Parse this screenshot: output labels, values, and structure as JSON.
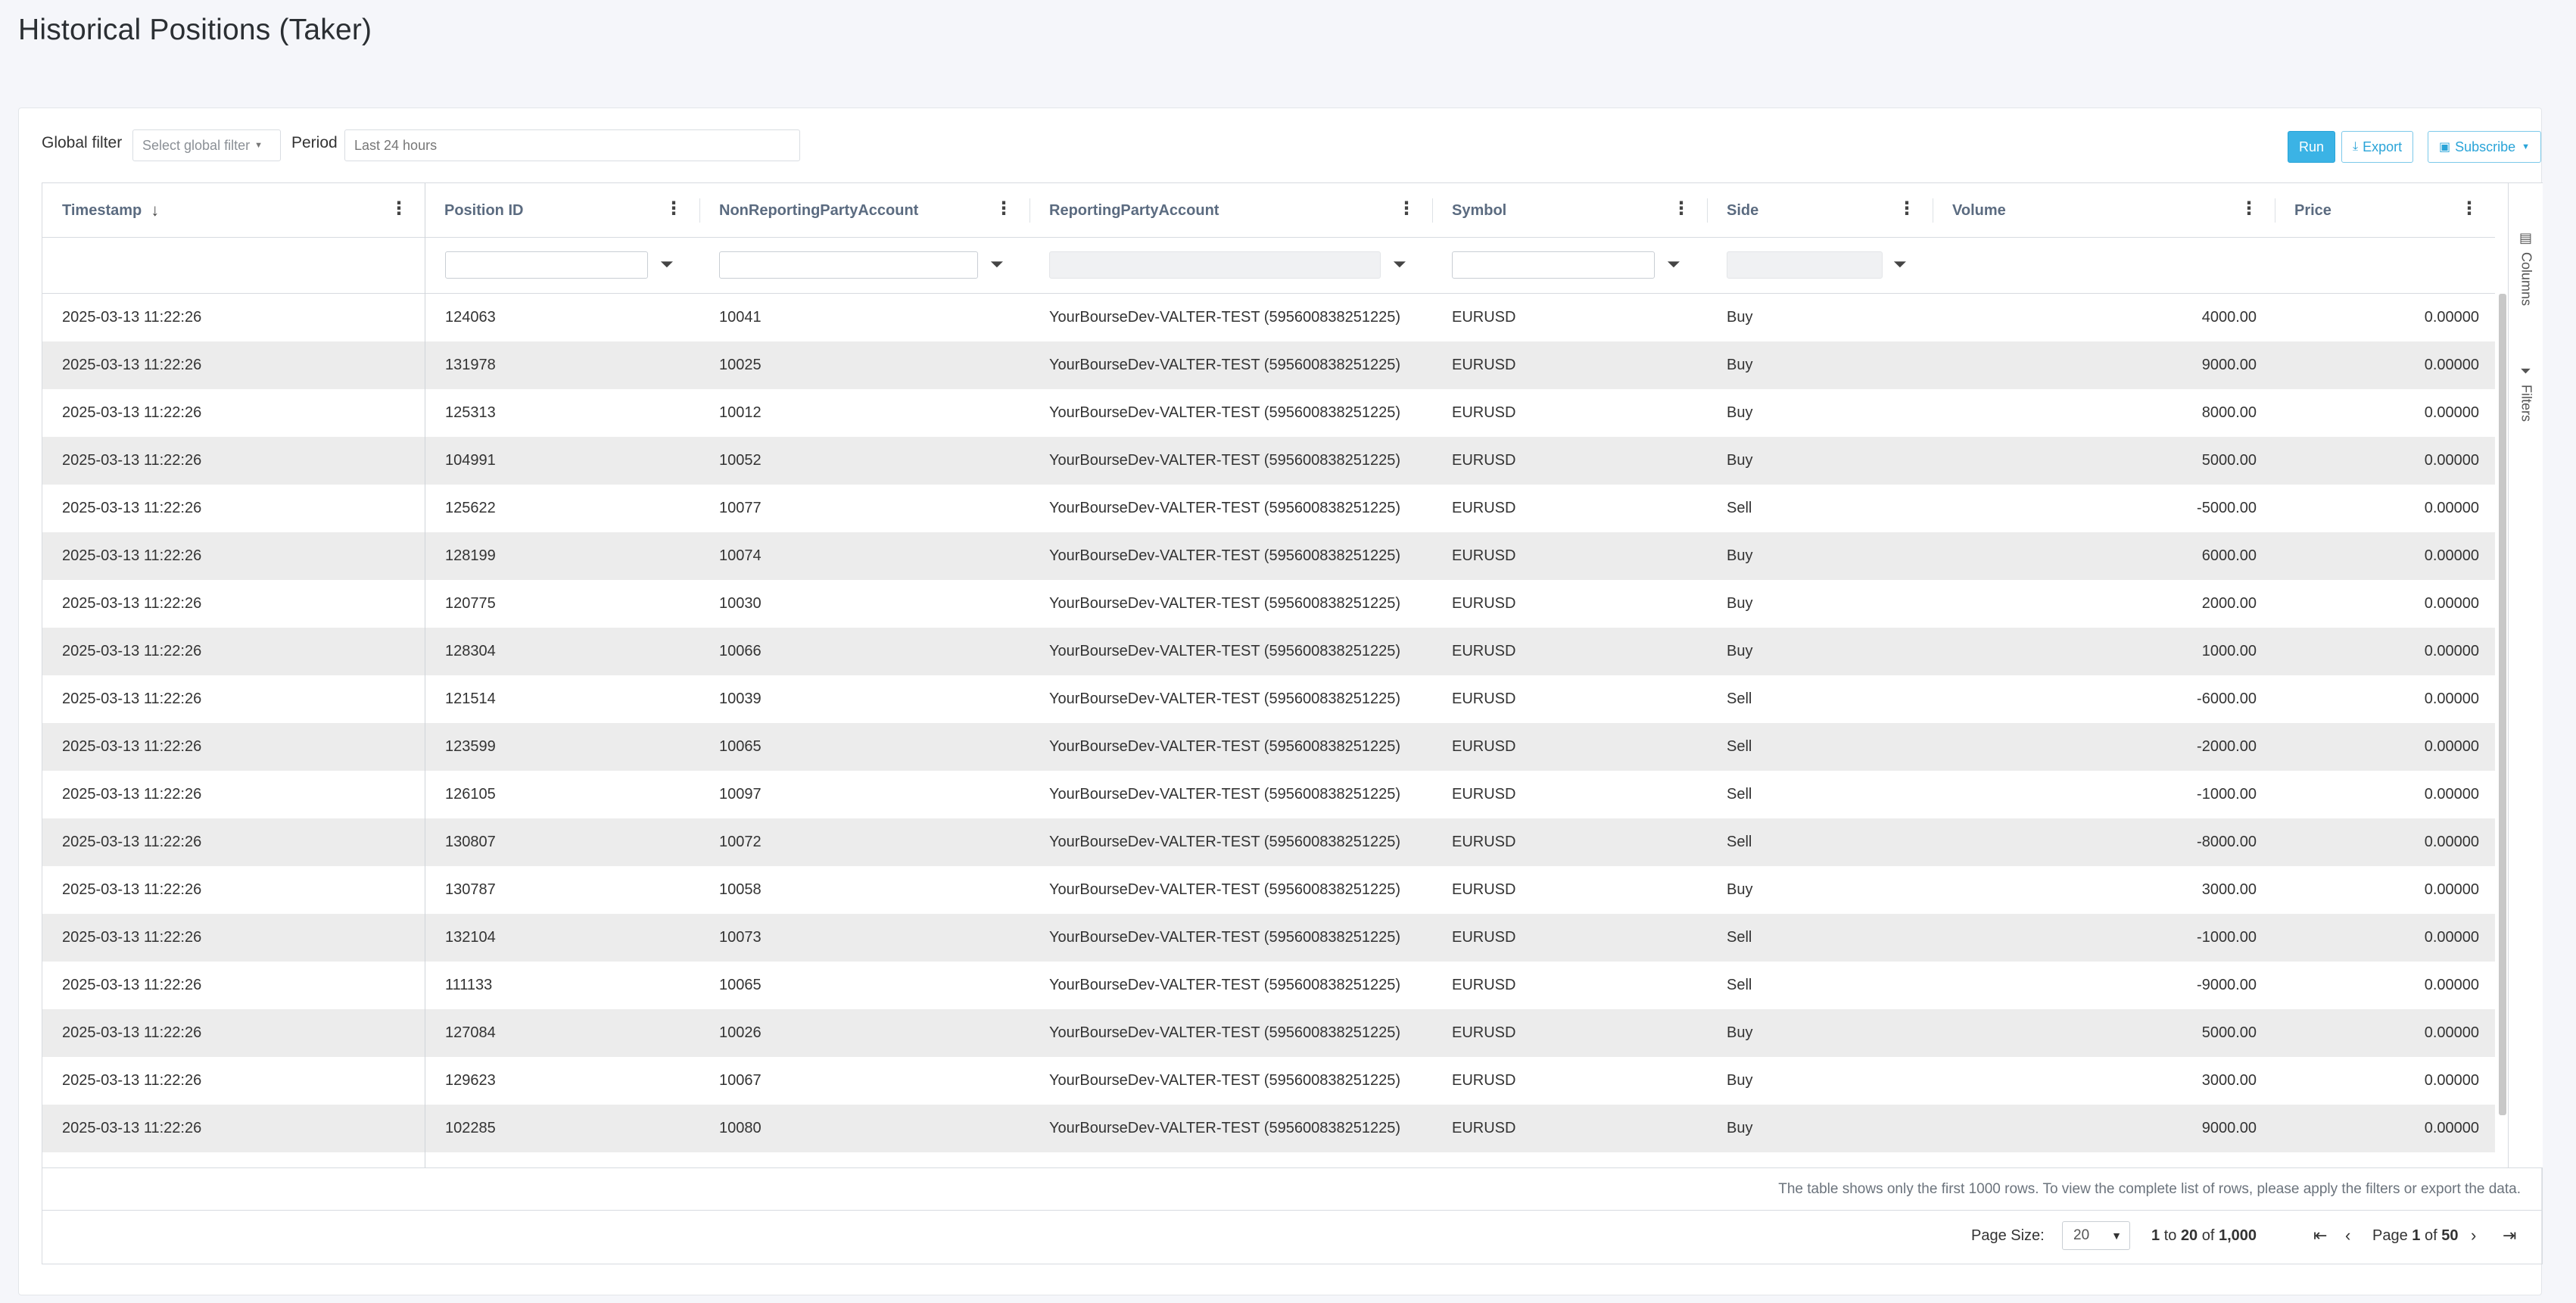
{
  "page": {
    "title": "Historical Positions (Taker)"
  },
  "toolbar": {
    "global_filter_label": "Global filter",
    "global_filter_placeholder": "Select global filter",
    "period_label": "Period",
    "period_value": "Last 24 hours",
    "run_label": "Run",
    "export_label": "Export",
    "subscribe_label": "Subscribe"
  },
  "columns": {
    "timestamp": "Timestamp",
    "position_id": "Position ID",
    "non_reporting": "NonReportingPartyAccount",
    "reporting": "ReportingPartyAccount",
    "symbol": "Symbol",
    "side": "Side",
    "volume": "Volume",
    "price": "Price"
  },
  "rows": [
    {
      "timestamp": "2025-03-13 11:22:26",
      "position_id": "124063",
      "non_reporting": "10041",
      "reporting": "YourBourseDev-VALTER-TEST (595600838251225)",
      "symbol": "EURUSD",
      "side": "Buy",
      "volume": "4000.00",
      "price": "0.00000"
    },
    {
      "timestamp": "2025-03-13 11:22:26",
      "position_id": "131978",
      "non_reporting": "10025",
      "reporting": "YourBourseDev-VALTER-TEST (595600838251225)",
      "symbol": "EURUSD",
      "side": "Buy",
      "volume": "9000.00",
      "price": "0.00000"
    },
    {
      "timestamp": "2025-03-13 11:22:26",
      "position_id": "125313",
      "non_reporting": "10012",
      "reporting": "YourBourseDev-VALTER-TEST (595600838251225)",
      "symbol": "EURUSD",
      "side": "Buy",
      "volume": "8000.00",
      "price": "0.00000"
    },
    {
      "timestamp": "2025-03-13 11:22:26",
      "position_id": "104991",
      "non_reporting": "10052",
      "reporting": "YourBourseDev-VALTER-TEST (595600838251225)",
      "symbol": "EURUSD",
      "side": "Buy",
      "volume": "5000.00",
      "price": "0.00000"
    },
    {
      "timestamp": "2025-03-13 11:22:26",
      "position_id": "125622",
      "non_reporting": "10077",
      "reporting": "YourBourseDev-VALTER-TEST (595600838251225)",
      "symbol": "EURUSD",
      "side": "Sell",
      "volume": "-5000.00",
      "price": "0.00000"
    },
    {
      "timestamp": "2025-03-13 11:22:26",
      "position_id": "128199",
      "non_reporting": "10074",
      "reporting": "YourBourseDev-VALTER-TEST (595600838251225)",
      "symbol": "EURUSD",
      "side": "Buy",
      "volume": "6000.00",
      "price": "0.00000"
    },
    {
      "timestamp": "2025-03-13 11:22:26",
      "position_id": "120775",
      "non_reporting": "10030",
      "reporting": "YourBourseDev-VALTER-TEST (595600838251225)",
      "symbol": "EURUSD",
      "side": "Buy",
      "volume": "2000.00",
      "price": "0.00000"
    },
    {
      "timestamp": "2025-03-13 11:22:26",
      "position_id": "128304",
      "non_reporting": "10066",
      "reporting": "YourBourseDev-VALTER-TEST (595600838251225)",
      "symbol": "EURUSD",
      "side": "Buy",
      "volume": "1000.00",
      "price": "0.00000"
    },
    {
      "timestamp": "2025-03-13 11:22:26",
      "position_id": "121514",
      "non_reporting": "10039",
      "reporting": "YourBourseDev-VALTER-TEST (595600838251225)",
      "symbol": "EURUSD",
      "side": "Sell",
      "volume": "-6000.00",
      "price": "0.00000"
    },
    {
      "timestamp": "2025-03-13 11:22:26",
      "position_id": "123599",
      "non_reporting": "10065",
      "reporting": "YourBourseDev-VALTER-TEST (595600838251225)",
      "symbol": "EURUSD",
      "side": "Sell",
      "volume": "-2000.00",
      "price": "0.00000"
    },
    {
      "timestamp": "2025-03-13 11:22:26",
      "position_id": "126105",
      "non_reporting": "10097",
      "reporting": "YourBourseDev-VALTER-TEST (595600838251225)",
      "symbol": "EURUSD",
      "side": "Sell",
      "volume": "-1000.00",
      "price": "0.00000"
    },
    {
      "timestamp": "2025-03-13 11:22:26",
      "position_id": "130807",
      "non_reporting": "10072",
      "reporting": "YourBourseDev-VALTER-TEST (595600838251225)",
      "symbol": "EURUSD",
      "side": "Sell",
      "volume": "-8000.00",
      "price": "0.00000"
    },
    {
      "timestamp": "2025-03-13 11:22:26",
      "position_id": "130787",
      "non_reporting": "10058",
      "reporting": "YourBourseDev-VALTER-TEST (595600838251225)",
      "symbol": "EURUSD",
      "side": "Buy",
      "volume": "3000.00",
      "price": "0.00000"
    },
    {
      "timestamp": "2025-03-13 11:22:26",
      "position_id": "132104",
      "non_reporting": "10073",
      "reporting": "YourBourseDev-VALTER-TEST (595600838251225)",
      "symbol": "EURUSD",
      "side": "Sell",
      "volume": "-1000.00",
      "price": "0.00000"
    },
    {
      "timestamp": "2025-03-13 11:22:26",
      "position_id": "111133",
      "non_reporting": "10065",
      "reporting": "YourBourseDev-VALTER-TEST (595600838251225)",
      "symbol": "EURUSD",
      "side": "Sell",
      "volume": "-9000.00",
      "price": "0.00000"
    },
    {
      "timestamp": "2025-03-13 11:22:26",
      "position_id": "127084",
      "non_reporting": "10026",
      "reporting": "YourBourseDev-VALTER-TEST (595600838251225)",
      "symbol": "EURUSD",
      "side": "Buy",
      "volume": "5000.00",
      "price": "0.00000"
    },
    {
      "timestamp": "2025-03-13 11:22:26",
      "position_id": "129623",
      "non_reporting": "10067",
      "reporting": "YourBourseDev-VALTER-TEST (595600838251225)",
      "symbol": "EURUSD",
      "side": "Buy",
      "volume": "3000.00",
      "price": "0.00000"
    },
    {
      "timestamp": "2025-03-13 11:22:26",
      "position_id": "102285",
      "non_reporting": "10080",
      "reporting": "YourBourseDev-VALTER-TEST (595600838251225)",
      "symbol": "EURUSD",
      "side": "Buy",
      "volume": "9000.00",
      "price": "0.00000"
    }
  ],
  "side_panel": {
    "columns_label": "Columns",
    "filters_label": "Filters"
  },
  "note": "The table shows only the first 1000 rows. To view the complete list of rows, please apply the filters or export the data.",
  "pager": {
    "page_size_label": "Page Size:",
    "page_size_value": "20",
    "range_from": "1",
    "range_to_word": "to",
    "range_to": "20",
    "of_word": "of",
    "total": "1,000",
    "page_word": "Page",
    "current_page": "1",
    "page_of_word": "of",
    "total_pages": "50"
  },
  "colors": {
    "accent": "#3bb3e5",
    "row_alt": "#ececec",
    "header_text": "#5b6b80"
  },
  "icons": [
    "sort-desc-icon",
    "column-menu-icon",
    "filter-icon",
    "download-icon",
    "calendar-icon",
    "columns-icon",
    "filter-panel-icon",
    "first-page-icon",
    "prev-page-icon",
    "next-page-icon",
    "last-page-icon"
  ]
}
